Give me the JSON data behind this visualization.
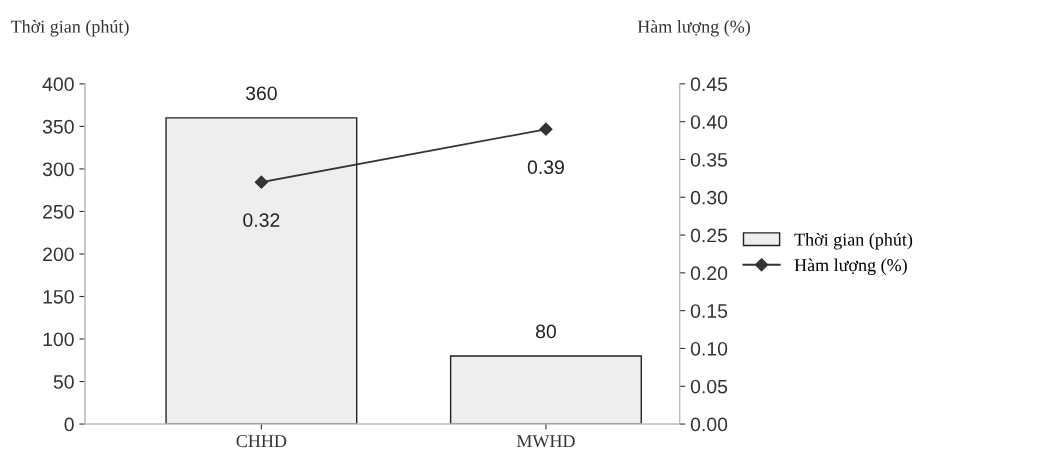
{
  "chart_data": {
    "type": "bar",
    "categories": [
      "CHHD",
      "MWHD"
    ],
    "ylabel": "Thời gian (phút)",
    "y2label": "Hàm lượng (%)",
    "series": [
      {
        "name": "Thời gian (phút)",
        "color": "#eeeeee",
        "values": [
          360,
          80
        ]
      },
      {
        "name": "Hàm lượng (%)",
        "type": "line",
        "axis": "y2",
        "color": "#333333",
        "values": [
          0.32,
          0.39
        ],
        "marker": "diamond"
      }
    ],
    "ylim": [
      0,
      400
    ],
    "yticks": [
      0,
      50,
      100,
      150,
      200,
      250,
      300,
      350,
      400
    ],
    "y2lim": [
      0,
      0.45
    ],
    "y2ticks": [
      {
        "value": 0,
        "label": "0.00"
      },
      {
        "value": 0.05,
        "label": "0.05"
      },
      {
        "value": 0.1,
        "label": "0.10"
      },
      {
        "value": 0.15,
        "label": "0.15"
      },
      {
        "value": 0.2,
        "label": "0.20"
      },
      {
        "value": 0.25,
        "label": "0.25"
      },
      {
        "value": 0.3,
        "label": "0.30"
      },
      {
        "value": 0.35,
        "label": "0.35"
      },
      {
        "value": 0.4,
        "label": "0.40"
      },
      {
        "value": 0.45,
        "label": "0.45"
      }
    ],
    "data_labels": true,
    "grid": false,
    "legend": "right"
  }
}
